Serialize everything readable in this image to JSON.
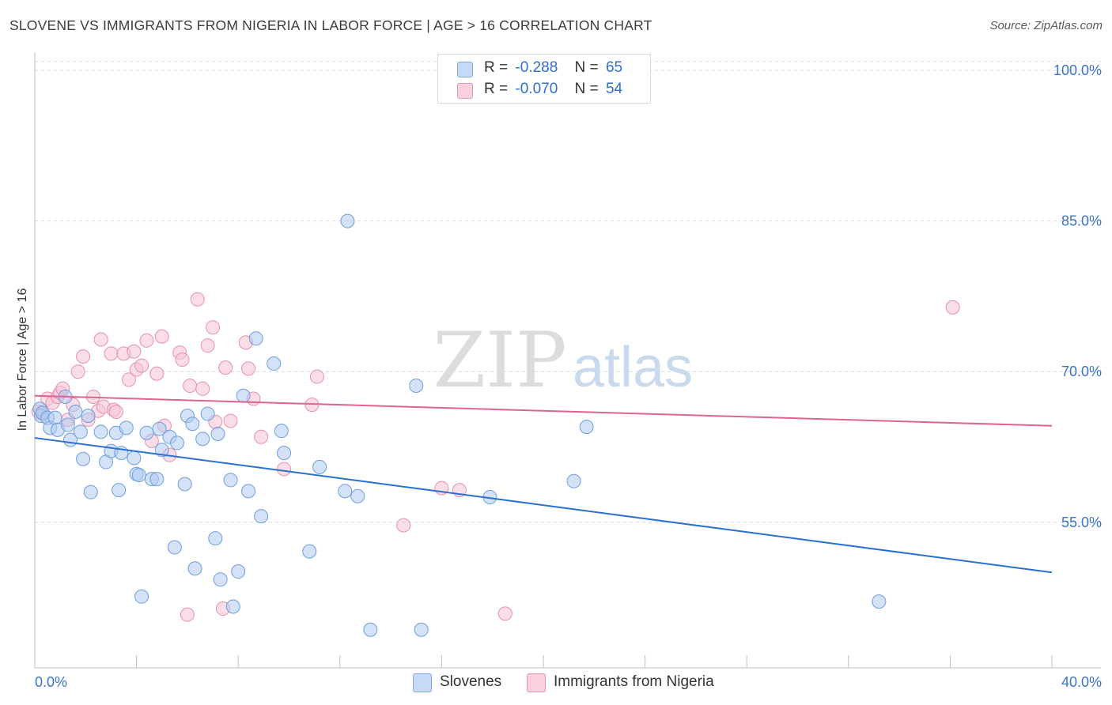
{
  "title": "SLOVENE VS IMMIGRANTS FROM NIGERIA IN LABOR FORCE | AGE > 16 CORRELATION CHART",
  "source": "Source: ZipAtlas.com",
  "watermark": {
    "zip": "ZIP",
    "atlas": "atlas"
  },
  "legend": {
    "rows": [
      {
        "r_label": "R =",
        "r_value": "-0.288",
        "n_label": "N =",
        "n_value": "65"
      },
      {
        "r_label": "R =",
        "r_value": "-0.070",
        "n_label": "N =",
        "n_value": "54"
      }
    ]
  },
  "bottom_legend": [
    "Slovenes",
    "Immigrants from Nigeria"
  ],
  "colors": {
    "blue_fill": "#aecbf0",
    "blue_stroke": "#6e9edc",
    "blue_line": "#2a6fd2",
    "pink_fill": "#f6c3d3",
    "pink_stroke": "#e690ac",
    "pink_line": "#e0638f",
    "tick_text": "#3a74cc",
    "grid": "#d9d9d9",
    "axis": "#bfbfbf"
  },
  "chart_data": {
    "type": "scatter",
    "title": "SLOVENE VS IMMIGRANTS FROM NIGERIA IN LABOR FORCE | AGE > 16 CORRELATION CHART",
    "xlabel": "",
    "ylabel": "In Labor Force | Age > 16",
    "xlim": [
      0,
      40
    ],
    "ylim": [
      40.5,
      101.5
    ],
    "x_tick_labels": [
      "0.0%",
      "40.0%"
    ],
    "y_ticks": [
      55,
      70,
      85,
      100
    ],
    "y_tick_labels": [
      "55.0%",
      "70.0%",
      "85.0%",
      "100.0%"
    ],
    "series": [
      {
        "name": "Slovenes",
        "color": "blue",
        "r": -0.288,
        "n": 65,
        "trend": {
          "x": [
            0,
            40
          ],
          "y": [
            63.4,
            50.0
          ]
        },
        "points": [
          [
            0.2,
            66.3
          ],
          [
            0.25,
            65.6
          ],
          [
            0.3,
            65.9
          ],
          [
            0.5,
            65.4
          ],
          [
            0.6,
            64.4
          ],
          [
            0.8,
            65.4
          ],
          [
            0.9,
            64.2
          ],
          [
            1.2,
            67.5
          ],
          [
            1.3,
            64.7
          ],
          [
            1.4,
            63.2
          ],
          [
            1.6,
            66.0
          ],
          [
            1.8,
            64.0
          ],
          [
            1.9,
            61.3
          ],
          [
            2.1,
            65.6
          ],
          [
            2.2,
            58.0
          ],
          [
            2.6,
            64.0
          ],
          [
            2.8,
            61.0
          ],
          [
            3.0,
            62.1
          ],
          [
            3.2,
            63.9
          ],
          [
            3.3,
            58.2
          ],
          [
            3.4,
            61.9
          ],
          [
            3.6,
            64.4
          ],
          [
            3.9,
            61.4
          ],
          [
            4.0,
            59.8
          ],
          [
            4.1,
            59.7
          ],
          [
            4.2,
            47.6
          ],
          [
            4.4,
            63.9
          ],
          [
            4.6,
            59.3
          ],
          [
            4.8,
            59.3
          ],
          [
            4.9,
            64.3
          ],
          [
            5.0,
            62.2
          ],
          [
            5.3,
            63.5
          ],
          [
            5.5,
            52.5
          ],
          [
            5.6,
            62.9
          ],
          [
            5.9,
            58.8
          ],
          [
            6.0,
            65.6
          ],
          [
            6.2,
            64.8
          ],
          [
            6.3,
            50.4
          ],
          [
            6.6,
            63.3
          ],
          [
            6.8,
            65.8
          ],
          [
            7.1,
            53.4
          ],
          [
            7.2,
            63.8
          ],
          [
            7.3,
            49.3
          ],
          [
            7.7,
            59.2
          ],
          [
            7.8,
            46.6
          ],
          [
            8.0,
            50.1
          ],
          [
            8.2,
            67.6
          ],
          [
            8.4,
            58.1
          ],
          [
            8.7,
            73.3
          ],
          [
            8.9,
            55.6
          ],
          [
            9.4,
            70.8
          ],
          [
            9.7,
            64.1
          ],
          [
            9.8,
            61.9
          ],
          [
            10.8,
            52.1
          ],
          [
            11.2,
            60.5
          ],
          [
            12.2,
            58.1
          ],
          [
            12.3,
            85.0
          ],
          [
            12.7,
            57.6
          ],
          [
            13.2,
            44.3
          ],
          [
            15.0,
            68.6
          ],
          [
            15.2,
            44.3
          ],
          [
            17.9,
            57.5
          ],
          [
            21.2,
            59.1
          ],
          [
            21.7,
            64.5
          ],
          [
            33.2,
            47.1
          ]
        ]
      },
      {
        "name": "Immigrants from Nigeria",
        "color": "pink",
        "r": -0.07,
        "n": 54,
        "trend": {
          "x": [
            0,
            40
          ],
          "y": [
            67.6,
            64.6
          ]
        },
        "points": [
          [
            0.15,
            66.0
          ],
          [
            0.3,
            65.8
          ],
          [
            0.5,
            67.3
          ],
          [
            0.7,
            66.9
          ],
          [
            0.9,
            67.5
          ],
          [
            1.0,
            67.9
          ],
          [
            1.1,
            68.3
          ],
          [
            1.3,
            65.2
          ],
          [
            1.5,
            66.7
          ],
          [
            1.7,
            70.0
          ],
          [
            1.9,
            71.5
          ],
          [
            2.1,
            65.2
          ],
          [
            2.3,
            67.5
          ],
          [
            2.5,
            66.1
          ],
          [
            2.6,
            73.2
          ],
          [
            2.7,
            66.5
          ],
          [
            3.0,
            71.8
          ],
          [
            3.1,
            66.2
          ],
          [
            3.2,
            66.0
          ],
          [
            3.5,
            71.8
          ],
          [
            3.7,
            69.2
          ],
          [
            3.9,
            72.0
          ],
          [
            4.0,
            70.2
          ],
          [
            4.2,
            70.6
          ],
          [
            4.4,
            73.1
          ],
          [
            4.6,
            63.1
          ],
          [
            4.8,
            69.8
          ],
          [
            5.0,
            73.5
          ],
          [
            5.1,
            64.6
          ],
          [
            5.3,
            61.7
          ],
          [
            5.7,
            71.9
          ],
          [
            5.8,
            71.2
          ],
          [
            6.0,
            45.8
          ],
          [
            6.1,
            68.6
          ],
          [
            6.4,
            77.2
          ],
          [
            6.6,
            68.3
          ],
          [
            6.8,
            72.6
          ],
          [
            7.0,
            74.4
          ],
          [
            7.1,
            65.0
          ],
          [
            7.4,
            46.4
          ],
          [
            7.5,
            70.4
          ],
          [
            7.7,
            65.1
          ],
          [
            8.3,
            72.9
          ],
          [
            8.4,
            70.3
          ],
          [
            8.6,
            67.3
          ],
          [
            8.9,
            63.5
          ],
          [
            9.8,
            60.3
          ],
          [
            10.9,
            66.7
          ],
          [
            11.1,
            69.5
          ],
          [
            14.5,
            54.7
          ],
          [
            16.0,
            58.4
          ],
          [
            16.7,
            58.2
          ],
          [
            18.5,
            45.9
          ],
          [
            36.1,
            76.4
          ]
        ]
      }
    ]
  }
}
